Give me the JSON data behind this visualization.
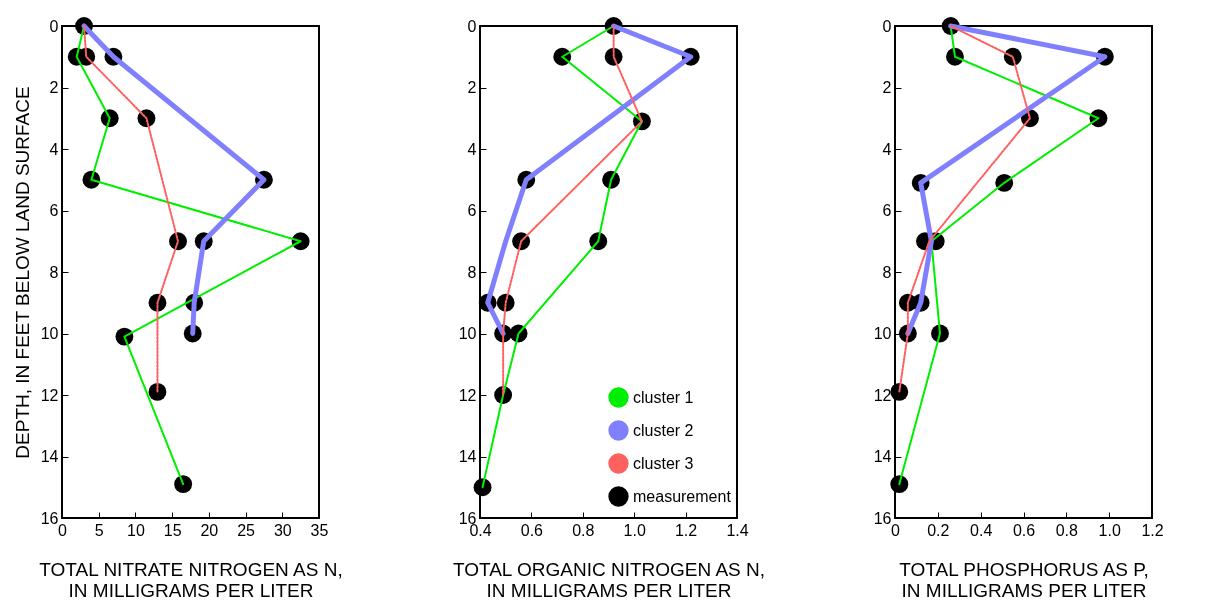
{
  "chart_data": [
    {
      "type": "line",
      "xlabel": "TOTAL NITRATE NITROGEN AS N,\nIN MILLIGRAMS PER LITER",
      "ylabel": "DEPTH, IN FEET BELOW LAND SURFACE",
      "xlim": [
        0,
        35
      ],
      "xticks": [
        0,
        5,
        10,
        15,
        20,
        25,
        30,
        35
      ],
      "ylim": [
        16,
        0
      ],
      "yticks": [
        0,
        2,
        4,
        6,
        8,
        10,
        12,
        14,
        16
      ],
      "legend": false,
      "grid": false,
      "series": [
        {
          "color": "#00ee00",
          "line_style": "solid",
          "x": [
            3,
            2,
            6.5,
            4,
            32.5,
            8.5,
            16.5
          ],
          "values": [
            0,
            1,
            3,
            5,
            7,
            10.1,
            14.9
          ]
        },
        {
          "color": "#8080ff",
          "line_style": "solid",
          "x": [
            3,
            7,
            27.5,
            19.3,
            18,
            17.8
          ],
          "values": [
            0,
            1,
            5,
            7,
            9,
            10
          ]
        },
        {
          "color": "#ff6060",
          "line_style": "dotted",
          "x": [
            3,
            3.3,
            11.5,
            15.8,
            13,
            13
          ],
          "values": [
            0,
            1,
            3,
            7,
            9,
            11.9
          ]
        },
        {
          "type": "scatter",
          "color": "#000000",
          "marker": "circle",
          "x": [
            3,
            2,
            3.3,
            7,
            6.5,
            11.5,
            4,
            27.5,
            15.8,
            19.3,
            32.5,
            13,
            18,
            8.5,
            17.8,
            13,
            16.5
          ],
          "values": [
            0,
            1,
            1,
            1,
            3,
            3,
            5,
            5,
            7,
            7,
            7,
            9,
            9,
            10.1,
            10,
            11.9,
            14.9
          ]
        }
      ]
    },
    {
      "type": "line",
      "xlabel": "TOTAL ORGANIC NITROGEN AS N,\nIN MILLIGRAMS PER LITER",
      "xlim": [
        0.4,
        1.4
      ],
      "xticks": [
        {
          "value": 0.4,
          "label": "0.4"
        },
        {
          "value": 0.6,
          "label": "0.6"
        },
        {
          "value": 0.8,
          "label": "0.8"
        },
        {
          "value": 1.0,
          "label": "1.0"
        },
        {
          "value": 1.2,
          "label": "1.2"
        },
        {
          "value": 1.4,
          "label": "1.4"
        }
      ],
      "ylim": [
        16,
        0
      ],
      "yticks": [
        0,
        2,
        4,
        6,
        8,
        10,
        12,
        14,
        16
      ],
      "legend": "bottom right",
      "grid": false,
      "series": [
        {
          "name": "cluster 1",
          "color": "#00ee00",
          "line_style": "solid",
          "x": [
            0.92,
            0.72,
            1.03,
            0.91,
            0.86,
            0.55,
            0.49,
            0.41
          ],
          "values": [
            0,
            1,
            3.1,
            5,
            7,
            10,
            12,
            15
          ]
        },
        {
          "name": "cluster 2",
          "color": "#8080ff",
          "line_style": "solid",
          "x": [
            0.92,
            1.22,
            0.58,
            0.5,
            0.43,
            0.49
          ],
          "values": [
            0,
            1,
            5,
            7,
            9,
            10
          ]
        },
        {
          "name": "cluster 3",
          "color": "#ff6060",
          "line_style": "dotted",
          "x": [
            0.92,
            0.92,
            1.03,
            0.56,
            0.5,
            0.49,
            0.49
          ],
          "values": [
            0,
            1,
            3.1,
            7,
            9,
            10,
            12
          ]
        },
        {
          "name": "measurement",
          "type": "scatter",
          "color": "#000000",
          "marker": "circle",
          "x": [
            0.92,
            0.72,
            0.92,
            1.22,
            1.03,
            0.58,
            0.91,
            0.56,
            0.86,
            0.43,
            0.5,
            0.49,
            0.55,
            0.49,
            0.41
          ],
          "values": [
            0,
            1,
            1,
            1,
            3.1,
            5,
            5,
            7,
            7,
            9,
            9,
            10,
            10,
            12,
            15
          ]
        }
      ]
    },
    {
      "type": "line",
      "xlabel": "TOTAL PHOSPHORUS AS P,\nIN MILLIGRAMS PER LITER",
      "xlim": [
        0,
        1.2
      ],
      "xticks": [
        0,
        0.2,
        0.4,
        0.6,
        0.8,
        {
          "value": 1.0,
          "label": "1.0"
        },
        1.2
      ],
      "ylim": [
        16,
        0
      ],
      "yticks": [
        0,
        2,
        4,
        6,
        8,
        10,
        12,
        14,
        16
      ],
      "legend": false,
      "grid": false,
      "series": [
        {
          "color": "#00ee00",
          "line_style": "solid",
          "x": [
            0.26,
            0.28,
            0.95,
            0.51,
            0.17,
            0.21,
            0.02
          ],
          "values": [
            0,
            1,
            3,
            5.1,
            7,
            10,
            14.9
          ]
        },
        {
          "color": "#8080ff",
          "line_style": "solid",
          "x": [
            0.26,
            0.98,
            0.12,
            0.17,
            0.12,
            0.06
          ],
          "values": [
            0,
            1,
            5.1,
            7,
            9,
            10
          ]
        },
        {
          "color": "#ff6060",
          "line_style": "dotted",
          "x": [
            0.26,
            0.55,
            0.63,
            0.16,
            0.06,
            0.06,
            0.02
          ],
          "values": [
            0,
            1,
            3,
            7,
            9,
            10,
            11.9
          ]
        },
        {
          "type": "scatter",
          "color": "#000000",
          "marker": "circle",
          "x": [
            0.26,
            0.28,
            0.55,
            0.98,
            0.63,
            0.95,
            0.12,
            0.51,
            0.14,
            0.19,
            0.06,
            0.12,
            0.06,
            0.21,
            0.02,
            0.02
          ],
          "values": [
            0,
            1,
            1,
            1,
            3,
            3,
            5.1,
            5.1,
            7,
            7,
            9,
            9,
            10,
            10,
            11.9,
            14.9
          ]
        }
      ]
    }
  ]
}
